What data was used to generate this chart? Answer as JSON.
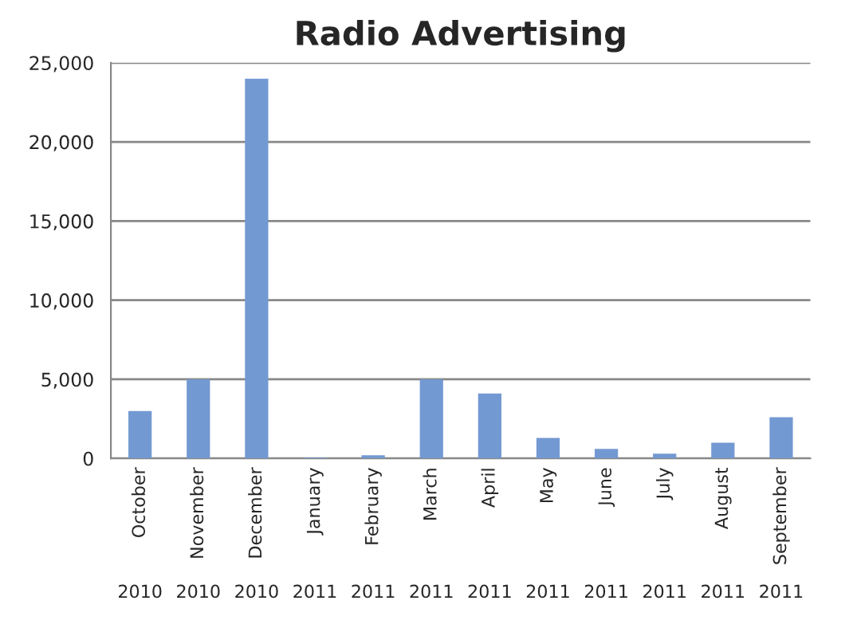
{
  "chart_data": {
    "type": "bar",
    "title": "Radio Advertising",
    "categories": [
      "October",
      "November",
      "December",
      "January",
      "February",
      "March",
      "April",
      "May",
      "June",
      "July",
      "August",
      "September"
    ],
    "values": [
      3000,
      5000,
      24000,
      50,
      200,
      5000,
      4100,
      1300,
      600,
      300,
      1000,
      2600
    ],
    "color": "#7399d2",
    "ylim": [
      0,
      25000
    ],
    "yticks": [
      {
        "value": 0,
        "label": "0"
      },
      {
        "value": 5000,
        "label": "5,000"
      },
      {
        "value": 10000,
        "label": "10,000"
      },
      {
        "value": 15000,
        "label": "15,000"
      },
      {
        "value": 20000,
        "label": "20,000"
      },
      {
        "value": 25000,
        "label": "25,000"
      }
    ],
    "grid": "y",
    "annotations": [
      "2010",
      "2010",
      "2010",
      "2011",
      "2011",
      "2011",
      "2011",
      "2011",
      "2011",
      "2011",
      "2011",
      "2011"
    ]
  }
}
